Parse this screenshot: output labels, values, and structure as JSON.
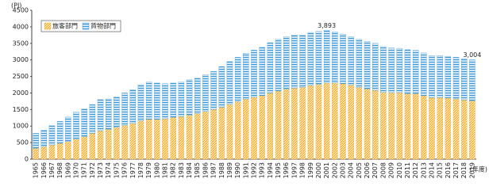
{
  "chart_data": {
    "type": "stacked-bar",
    "y_label": "(PJ)",
    "x_label": "(年度)",
    "categories": [
      "1965",
      "1966",
      "1967",
      "1968",
      "1969",
      "1970",
      "1971",
      "1972",
      "1973",
      "1974",
      "1975",
      "1976",
      "1977",
      "1978",
      "1979",
      "1980",
      "1981",
      "1982",
      "1983",
      "1984",
      "1985",
      "1986",
      "1987",
      "1988",
      "1989",
      "1990",
      "1991",
      "1992",
      "1993",
      "1994",
      "1995",
      "1996",
      "1997",
      "1998",
      "1999",
      "2000",
      "2001",
      "2002",
      "2003",
      "2004",
      "2005",
      "2006",
      "2007",
      "2008",
      "2009",
      "2010",
      "2011",
      "2012",
      "2013",
      "2014",
      "2015",
      "2016",
      "2017",
      "2018",
      "2019"
    ],
    "series": [
      {
        "name": "旅客部門",
        "color": "#f5a623",
        "values": [
          330,
          380,
          430,
          480,
          530,
          600,
          680,
          780,
          860,
          900,
          960,
          1020,
          1080,
          1160,
          1200,
          1200,
          1220,
          1260,
          1290,
          1330,
          1380,
          1440,
          1500,
          1570,
          1660,
          1740,
          1810,
          1870,
          1920,
          2000,
          2060,
          2110,
          2150,
          2170,
          2230,
          2260,
          2300,
          2300,
          2280,
          2240,
          2170,
          2120,
          2080,
          2020,
          2010,
          2010,
          1980,
          1980,
          1920,
          1860,
          1860,
          1850,
          1820,
          1790,
          1760
        ]
      },
      {
        "name": "貨物部門",
        "color": "#3a96d4",
        "values": [
          450,
          500,
          580,
          660,
          740,
          820,
          840,
          870,
          940,
          920,
          920,
          980,
          1020,
          1090,
          1130,
          1100,
          1060,
          1040,
          1040,
          1070,
          1070,
          1110,
          1150,
          1230,
          1290,
          1340,
          1390,
          1430,
          1460,
          1520,
          1560,
          1590,
          1600,
          1580,
          1600,
          1600,
          1593,
          1550,
          1500,
          1460,
          1450,
          1440,
          1420,
          1380,
          1350,
          1340,
          1330,
          1310,
          1290,
          1270,
          1270,
          1260,
          1260,
          1250,
          1244
        ]
      }
    ],
    "annotations": [
      {
        "category": "2001",
        "value": 3893,
        "label": "3,893"
      },
      {
        "category": "2019",
        "value": 3004,
        "label": "3,004"
      }
    ],
    "ylim": [
      0,
      4500
    ],
    "yticks": [
      0,
      500,
      1000,
      1500,
      2000,
      2500,
      3000,
      3500,
      4000,
      4500
    ],
    "grid": false,
    "legend": "top-left"
  }
}
